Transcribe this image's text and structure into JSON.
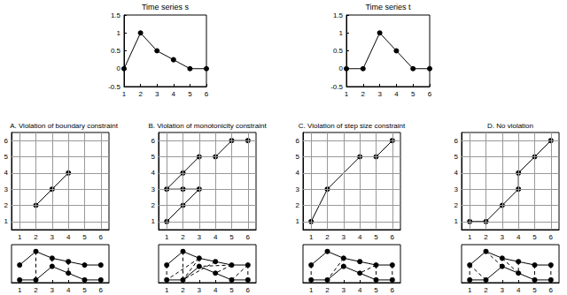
{
  "chart_data": [
    {
      "type": "line",
      "title": "Time series s",
      "x": [
        1,
        2,
        3,
        4,
        5,
        6
      ],
      "values": [
        0,
        1,
        0.5,
        0.25,
        0,
        0
      ],
      "xlim": [
        1,
        6
      ],
      "xticks": [
        1,
        2,
        3,
        4,
        5,
        6
      ],
      "ylim": [
        -0.5,
        1.5
      ],
      "yticks": [
        -0.5,
        0,
        0.5,
        1,
        1.5
      ],
      "color": "#000000",
      "marker": "circle",
      "grid": false
    },
    {
      "type": "line",
      "title": "Time series t",
      "x": [
        1,
        2,
        3,
        4,
        5,
        6
      ],
      "values": [
        0,
        0,
        1,
        0.5,
        0,
        0
      ],
      "xlim": [
        1,
        6
      ],
      "xticks": [
        1,
        2,
        3,
        4,
        5,
        6
      ],
      "ylim": [
        -0.5,
        1.5
      ],
      "yticks": [
        -0.5,
        0,
        0.5,
        1,
        1.5
      ],
      "color": "#000000",
      "marker": "circle",
      "grid": false
    },
    {
      "type": "path",
      "title": "A. Violation of boundary constraint",
      "x": [
        2,
        3,
        4
      ],
      "values": [
        2,
        3,
        4
      ],
      "xlim": [
        0.5,
        6.5
      ],
      "xticks": [
        1,
        2,
        3,
        4,
        5,
        6
      ],
      "ylim": [
        0.5,
        6.5
      ],
      "yticks": [
        1,
        2,
        3,
        4,
        5,
        6
      ],
      "grid": true,
      "color": "#000000",
      "marker": "circle"
    },
    {
      "type": "path",
      "title": "B. Violation of monotonicity constraint",
      "x": [
        1,
        2,
        3,
        2,
        1,
        2,
        3,
        4,
        5,
        6
      ],
      "values": [
        1,
        2,
        3,
        3,
        3,
        4,
        5,
        5,
        6,
        6
      ],
      "xlim": [
        0.5,
        6.5
      ],
      "xticks": [
        1,
        2,
        3,
        4,
        5,
        6
      ],
      "ylim": [
        0.5,
        6.5
      ],
      "yticks": [
        1,
        2,
        3,
        4,
        5,
        6
      ],
      "grid": true,
      "color": "#000000",
      "marker": "circle"
    },
    {
      "type": "path",
      "title": "C. Violation of step size constraint",
      "x": [
        1,
        2,
        4,
        5,
        6
      ],
      "values": [
        1,
        3,
        5,
        5,
        6
      ],
      "xlim": [
        0.5,
        6.5
      ],
      "xticks": [
        1,
        2,
        3,
        4,
        5,
        6
      ],
      "ylim": [
        0.5,
        6.5
      ],
      "yticks": [
        1,
        2,
        3,
        4,
        5,
        6
      ],
      "grid": true,
      "color": "#000000",
      "marker": "circle"
    },
    {
      "type": "path",
      "title": "D. No violation",
      "x": [
        1,
        2,
        3,
        4,
        4,
        5,
        6
      ],
      "values": [
        1,
        1,
        2,
        3,
        4,
        5,
        6
      ],
      "xlim": [
        0.5,
        6.5
      ],
      "xticks": [
        1,
        2,
        3,
        4,
        5,
        6
      ],
      "ylim": [
        0.5,
        6.5
      ],
      "yticks": [
        1,
        2,
        3,
        4,
        5,
        6
      ],
      "grid": true,
      "color": "#000000",
      "marker": "circle"
    },
    {
      "type": "alignment",
      "xlim": [
        0.5,
        6.5
      ],
      "xticks": [
        1,
        2,
        3,
        4,
        5,
        6
      ],
      "ylim": [
        -0.2,
        2.6
      ],
      "y2lim": [
        -1.3,
        1.5
      ],
      "tick_labels": "x",
      "line_style": "dashed",
      "color": "#000000",
      "marker": "circle"
    },
    {
      "type": "alignment",
      "xlim": [
        0.5,
        6.5
      ],
      "xticks": [
        1,
        2,
        3,
        4,
        5,
        6
      ],
      "ylim": [
        -0.2,
        2.6
      ],
      "y2lim": [
        -1.3,
        1.5
      ],
      "tick_labels": "x",
      "line_style": "dashed",
      "color": "#000000",
      "marker": "circle"
    },
    {
      "type": "alignment",
      "xlim": [
        0.5,
        6.5
      ],
      "xticks": [
        1,
        2,
        3,
        4,
        5,
        6
      ],
      "ylim": [
        -0.2,
        2.6
      ],
      "y2lim": [
        -1.3,
        1.5
      ],
      "tick_labels": "x",
      "line_style": "dashed",
      "color": "#000000",
      "marker": "circle"
    },
    {
      "type": "alignment",
      "xlim": [
        0.5,
        6.5
      ],
      "xticks": [
        1,
        2,
        3,
        4,
        5,
        6
      ],
      "ylim": [
        -0.2,
        2.6
      ],
      "y2lim": [
        -1.3,
        1.5
      ],
      "tick_labels": "x",
      "line_style": "dashed",
      "color": "#000000",
      "marker": "circle"
    }
  ]
}
